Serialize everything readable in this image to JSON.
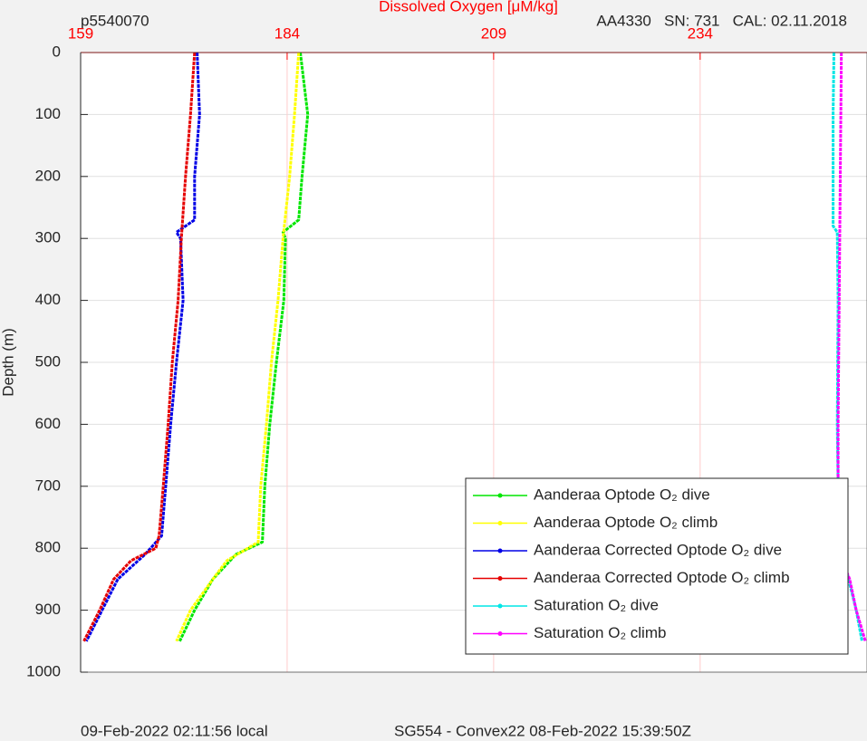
{
  "chart_data": {
    "type": "line",
    "title": "Dissolved Oxygen [μM/kg]",
    "title_color": "#ff0000",
    "top_left_label": "p5540070",
    "top_right_label": "AA4330   SN: 731   CAL: 02.11.2018",
    "ylabel": "Depth (m)",
    "footer_left": "09-Feb-2022 02:11:56 local",
    "footer_right": "SG554 - Convex22 08-Feb-2022 15:39:50Z",
    "xlim": [
      159,
      254.2
    ],
    "xticks": [
      159,
      184,
      209,
      234
    ],
    "ylim": [
      0,
      1000
    ],
    "yticks": [
      0,
      100,
      200,
      300,
      400,
      500,
      600,
      700,
      800,
      900,
      1000
    ],
    "y_reversed": true,
    "grid": true,
    "legend": "lower right",
    "series": [
      {
        "name": "Aanderaa Optode O₂ dive",
        "color": "#00e600",
        "x": [
          185.6,
          186.5,
          185.8,
          185.4,
          183.5,
          183.8,
          183.6,
          182.7,
          181.9,
          181.3,
          181.0,
          177.8,
          175.0,
          172.8,
          171.0
        ],
        "values": [
          0,
          100,
          200,
          270,
          290,
          300,
          400,
          500,
          600,
          700,
          790,
          810,
          850,
          900,
          950
        ]
      },
      {
        "name": "Aanderaa Optode O₂ climb",
        "color": "#ffff00",
        "x": [
          185.4,
          184.9,
          184.3,
          183.5,
          182.9,
          182.1,
          181.5,
          180.8,
          180.5,
          176.7,
          175.0,
          172.3,
          170.6
        ],
        "values": [
          0,
          100,
          200,
          300,
          400,
          500,
          600,
          700,
          790,
          820,
          850,
          900,
          950
        ]
      },
      {
        "name": "Aanderaa Corrected Optode O₂ dive",
        "color": "#0000e6",
        "x": [
          173.1,
          173.4,
          172.8,
          172.8,
          170.6,
          171.1,
          171.4,
          170.6,
          169.9,
          169.3,
          168.8,
          166.8,
          163.5,
          161.6,
          159.7
        ],
        "values": [
          0,
          100,
          200,
          270,
          290,
          300,
          400,
          500,
          600,
          700,
          780,
          810,
          850,
          900,
          950
        ]
      },
      {
        "name": "Aanderaa Corrected Optode O₂ climb",
        "color": "#e60000",
        "x": [
          172.8,
          172.3,
          171.7,
          171.2,
          170.8,
          170.1,
          169.6,
          169.0,
          168.5,
          168.1,
          165.1,
          163.0,
          161.3,
          159.4
        ],
        "values": [
          0,
          100,
          200,
          300,
          400,
          500,
          600,
          700,
          780,
          800,
          820,
          850,
          900,
          950
        ]
      },
      {
        "name": "Saturation O₂ dive",
        "color": "#00e6e6",
        "x": [
          250.2,
          250.1,
          250.1,
          250.6,
          250.7,
          250.6,
          250.8,
          251.4,
          252.9,
          253.6
        ],
        "values": [
          0,
          100,
          280,
          290,
          400,
          600,
          800,
          820,
          900,
          950
        ]
      },
      {
        "name": "Saturation O₂ climb",
        "color": "#ff00ff",
        "x": [
          251.1,
          250.9,
          250.7,
          250.7,
          251.2,
          252.1,
          252.9,
          254.0
        ],
        "values": [
          0,
          300,
          600,
          800,
          820,
          850,
          900,
          950
        ]
      }
    ]
  }
}
